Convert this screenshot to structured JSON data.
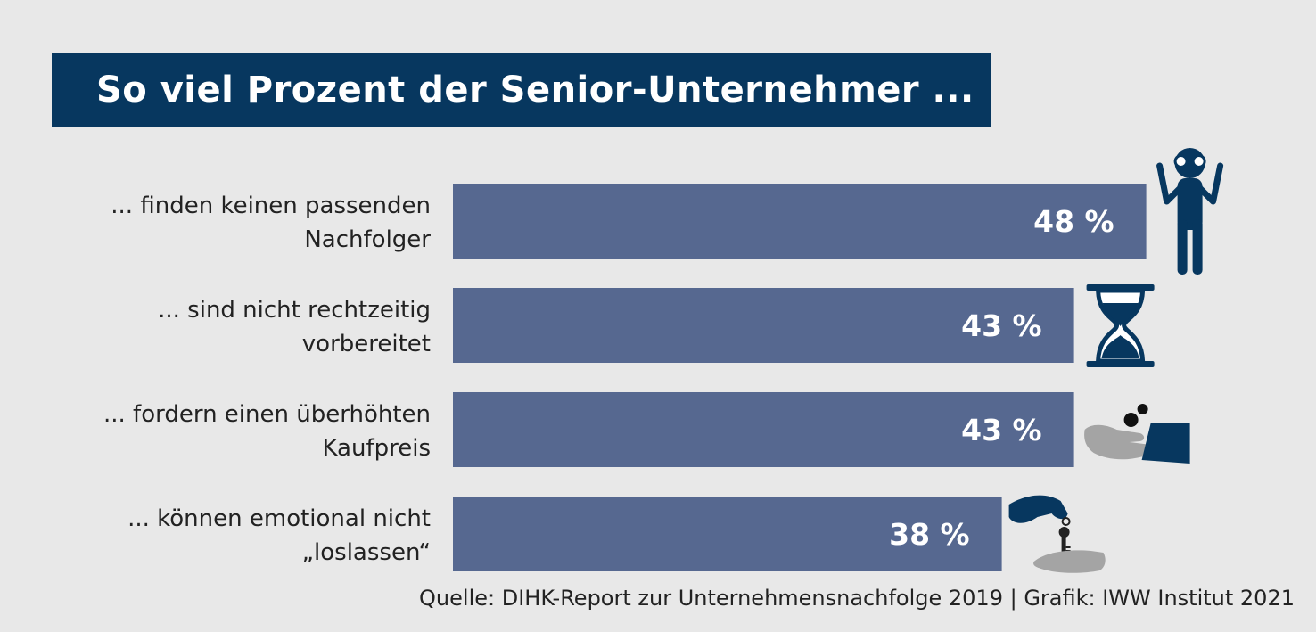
{
  "colors": {
    "background": "#e8e8e8",
    "title_box": "#07375f",
    "bar": "#566890",
    "bar_label": "#ffffff",
    "icon_navy": "#07375f",
    "icon_gray": "#a4a4a4",
    "text": "#222222"
  },
  "title": "So viel Prozent der Senior-Unternehmer ...",
  "source": "Quelle: DIHK-Report zur Unternehmensnachfolge 2019 | Grafik: IWW Institut 2021",
  "chart_data": {
    "type": "bar",
    "orientation": "horizontal",
    "title": "So viel Prozent der Senior-Unternehmer ...",
    "unit": "%",
    "categories": [
      [
        "... finden keinen passenden",
        "Nachfolger"
      ],
      [
        "... sind nicht rechtzeitig",
        "vorbereitet"
      ],
      [
        "... fordern einen überhöhten",
        "Kaufpreis"
      ],
      [
        "... können emotional nicht",
        "„loslassen“"
      ]
    ],
    "values": [
      48,
      43,
      43,
      38
    ],
    "value_labels": [
      "48 %",
      "43 %",
      "43 %",
      "38 %"
    ],
    "icons": [
      "binoculars-person-icon",
      "hourglass-icon",
      "hand-coins-money-icon",
      "key-handover-icon"
    ],
    "xlim": [
      0,
      100
    ]
  }
}
